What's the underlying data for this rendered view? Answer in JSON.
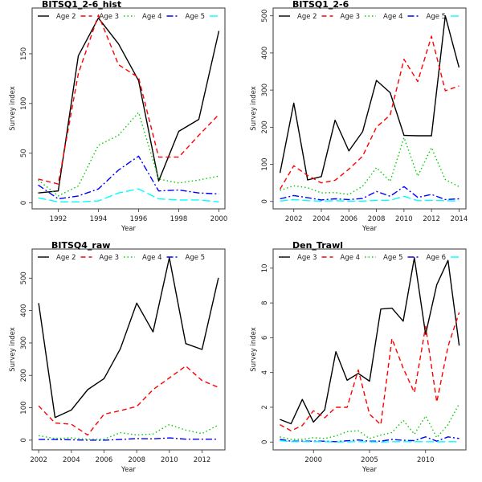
{
  "chart_data": [
    {
      "type": "line",
      "title": "BITSQ1_2-6_hist",
      "xlabel": "Year",
      "ylabel": "Survey index",
      "xlim": [
        1990.7,
        2000.3
      ],
      "ylim": [
        -6,
        196
      ],
      "xticks": [
        1992,
        1994,
        1996,
        1998,
        2000
      ],
      "yticks": [
        0,
        50,
        100,
        150
      ],
      "grid": false,
      "legend": "top",
      "x": [
        1991,
        1992,
        1993,
        1994,
        1995,
        1996,
        1997,
        1998,
        1999,
        2000
      ],
      "series": [
        {
          "name": "Age 2",
          "color": "#000000",
          "style": "solid",
          "values": [
            10,
            12,
            148,
            186,
            160,
            123,
            22,
            72,
            84,
            173
          ]
        },
        {
          "name": "Age 3",
          "color": "#FF0000",
          "style": "dashed",
          "values": [
            24,
            19,
            130,
            189,
            139,
            126,
            46,
            46,
            68,
            89
          ]
        },
        {
          "name": "Age 4",
          "color": "#00CD00",
          "style": "dotted",
          "values": [
            23,
            7,
            17,
            58,
            68,
            91,
            24,
            20,
            23,
            27
          ]
        },
        {
          "name": "Age 5",
          "color": "#0000FF",
          "style": "dotdash",
          "values": [
            18,
            4,
            7,
            14,
            33,
            47,
            12,
            13,
            10,
            9
          ]
        },
        {
          "name": "",
          "color": "#00FFFF",
          "style": "longdash",
          "values": [
            5,
            1,
            1,
            2,
            10,
            14,
            4,
            3,
            3,
            1
          ]
        }
      ]
    },
    {
      "type": "line",
      "title": "BITSQ1_2-6",
      "xlabel": "Year",
      "ylabel": "Survey index",
      "xlim": [
        2000.5,
        2014.5
      ],
      "ylim": [
        -20,
        521
      ],
      "xticks": [
        2002,
        2004,
        2006,
        2008,
        2010,
        2012,
        2014
      ],
      "yticks": [
        0,
        100,
        200,
        300,
        400,
        500
      ],
      "grid": false,
      "legend": "top",
      "x": [
        2001,
        2002,
        2003,
        2004,
        2005,
        2006,
        2007,
        2008,
        2009,
        2010,
        2011,
        2012,
        2013,
        2014
      ],
      "series": [
        {
          "name": "Age 2",
          "color": "#000000",
          "style": "solid",
          "values": [
            77,
            265,
            58,
            67,
            219,
            136,
            188,
            326,
            293,
            178,
            177,
            177,
            500,
            361
          ]
        },
        {
          "name": "Age 3",
          "color": "#FF0000",
          "style": "dashed",
          "values": [
            33,
            96,
            70,
            50,
            57,
            87,
            122,
            200,
            233,
            383,
            323,
            445,
            298,
            311
          ]
        },
        {
          "name": "Age 4",
          "color": "#00CD00",
          "style": "dotted",
          "values": [
            30,
            42,
            37,
            23,
            24,
            19,
            41,
            91,
            54,
            172,
            68,
            145,
            59,
            40
          ]
        },
        {
          "name": "Age 5",
          "color": "#0000FF",
          "style": "dotdash",
          "values": [
            7,
            16,
            10,
            4,
            7,
            5,
            8,
            27,
            14,
            40,
            11,
            19,
            5,
            7
          ]
        },
        {
          "name": "",
          "color": "#00FFFF",
          "style": "longdash",
          "values": [
            1,
            5,
            2,
            1,
            2,
            1,
            1,
            3,
            3,
            14,
            2,
            3,
            2,
            1
          ]
        }
      ]
    },
    {
      "type": "line",
      "title": "BITSQ4_raw",
      "xlabel": "Year",
      "ylabel": "Survey index",
      "xlim": [
        2001.6,
        2013.4
      ],
      "ylim": [
        -30,
        590
      ],
      "xticks": [
        2002,
        2004,
        2006,
        2008,
        2010,
        2012
      ],
      "yticks": [
        0,
        100,
        200,
        300,
        400,
        500
      ],
      "grid": false,
      "legend": "top",
      "x": [
        2002,
        2003,
        2004,
        2005,
        2006,
        2007,
        2008,
        2009,
        2010,
        2011,
        2012,
        2013
      ],
      "series": [
        {
          "name": "Age 2",
          "color": "#000000",
          "style": "solid",
          "values": [
            423,
            70,
            93,
            156,
            190,
            282,
            423,
            334,
            563,
            298,
            280,
            501
          ]
        },
        {
          "name": "Age 3",
          "color": "#FF0000",
          "style": "dashed",
          "values": [
            106,
            53,
            49,
            16,
            80,
            91,
            104,
            156,
            192,
            229,
            184,
            163
          ]
        },
        {
          "name": "Age 4",
          "color": "#00CD00",
          "style": "dotted",
          "values": [
            14,
            5,
            7,
            3,
            3,
            23,
            16,
            19,
            48,
            31,
            20,
            47
          ]
        },
        {
          "name": "Age 5",
          "color": "#0000FF",
          "style": "dotdash",
          "values": [
            2,
            2,
            1,
            0,
            0,
            2,
            5,
            4,
            7,
            3,
            3,
            3
          ]
        }
      ]
    },
    {
      "type": "line",
      "title": "Den_Trawl",
      "xlabel": "Year",
      "ylabel": "Survey index",
      "xlim": [
        1996.4,
        2013.6
      ],
      "ylim": [
        -0.45,
        11.1
      ],
      "xticks": [
        2000,
        2005,
        2010
      ],
      "yticks": [
        0,
        2,
        4,
        6,
        8,
        10
      ],
      "grid": false,
      "legend": "top",
      "x": [
        1997,
        1998,
        1999,
        2000,
        2001,
        2002,
        2003,
        2004,
        2005,
        2006,
        2007,
        2008,
        2009,
        2010,
        2011,
        2012,
        2013
      ],
      "series": [
        {
          "name": "Age 3",
          "color": "#000000",
          "style": "solid",
          "values": [
            1.3,
            1.05,
            2.45,
            1.15,
            1.85,
            5.2,
            3.55,
            3.95,
            3.5,
            7.65,
            7.7,
            6.95,
            10.6,
            6.2,
            9.05,
            10.45,
            5.55
          ]
        },
        {
          "name": "Age 4",
          "color": "#FF0000",
          "style": "dashed",
          "values": [
            1.0,
            0.65,
            0.95,
            1.8,
            1.4,
            2.0,
            2.0,
            4.15,
            1.6,
            1.0,
            5.95,
            4.25,
            2.85,
            6.65,
            2.3,
            5.5,
            7.45
          ]
        },
        {
          "name": "Age 5",
          "color": "#00CD00",
          "style": "dotted",
          "values": [
            0.3,
            0.15,
            0.15,
            0.25,
            0.2,
            0.35,
            0.6,
            0.65,
            0.2,
            0.4,
            0.55,
            1.25,
            0.45,
            1.5,
            0.25,
            1.0,
            2.2
          ]
        },
        {
          "name": "Age 6",
          "color": "#0000FF",
          "style": "dotdash",
          "values": [
            0.15,
            0.05,
            0.05,
            0.05,
            0.05,
            0.02,
            0.07,
            0.12,
            0.05,
            0.05,
            0.15,
            0.1,
            0.08,
            0.3,
            0.05,
            0.3,
            0.2
          ]
        },
        {
          "name": "",
          "color": "#00FFFF",
          "style": "longdash",
          "values": [
            0.08,
            0.02,
            0.02,
            0.02,
            0.02,
            0,
            0.01,
            0.02,
            0.01,
            0,
            0.02,
            0.02,
            0.02,
            0.02,
            0.01,
            0.02,
            0.02
          ]
        }
      ]
    }
  ]
}
